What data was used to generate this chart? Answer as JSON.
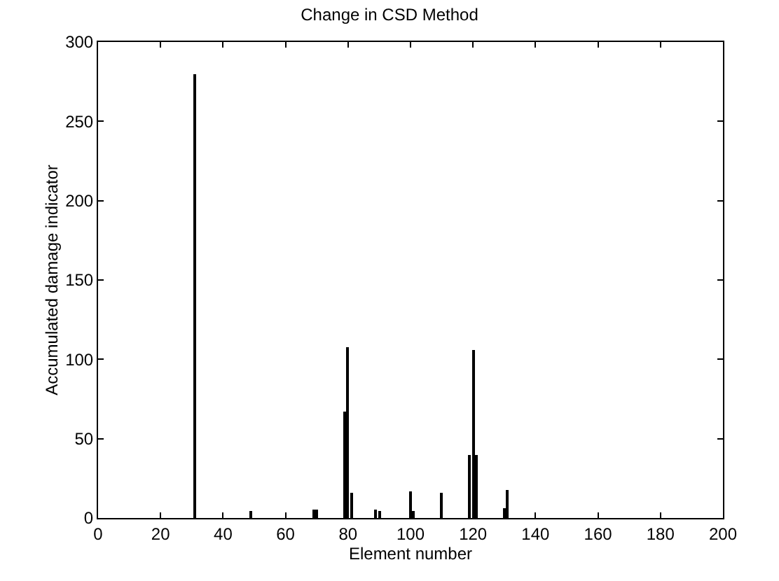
{
  "chart_data": {
    "type": "bar",
    "title": "Change in CSD Method",
    "xlabel": "Element number",
    "ylabel": "Accumulated damage indicator",
    "x": [
      31,
      49,
      69,
      70,
      79,
      80,
      81,
      89,
      90,
      100,
      101,
      110,
      119,
      120,
      121,
      130,
      131
    ],
    "series": [
      {
        "color": "#000000",
        "values": [
          280,
          4,
          5,
          5,
          67,
          108,
          16,
          5,
          4,
          17,
          4,
          16,
          40,
          106,
          40,
          6,
          18
        ]
      }
    ],
    "xlim": [
      0,
      200
    ],
    "xticks": [
      0,
      20,
      40,
      60,
      80,
      100,
      120,
      140,
      160,
      180,
      200
    ],
    "ylim": [
      0,
      300
    ],
    "yticks": [
      0,
      50,
      100,
      150,
      200,
      250,
      300
    ]
  }
}
